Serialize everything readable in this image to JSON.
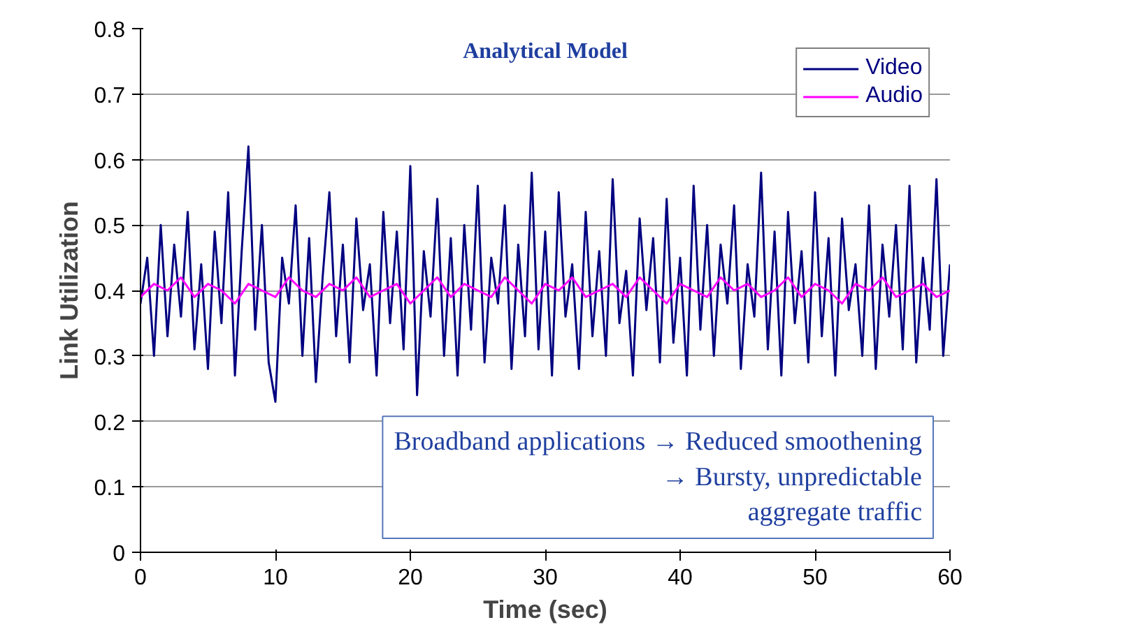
{
  "chart_data": {
    "type": "line",
    "title": "Analytical Model",
    "xlabel": "Time (sec)",
    "ylabel": "Link Utilization",
    "xlim": [
      0,
      60
    ],
    "xticks": [
      0,
      10,
      20,
      30,
      40,
      50,
      60
    ],
    "ylim": [
      0,
      0.8
    ],
    "yticks": [
      0,
      0.1,
      0.2,
      0.3,
      0.4,
      0.5,
      0.6,
      0.7,
      0.8
    ],
    "grid": "y",
    "legend": "top right",
    "marker": "none",
    "line_style": "solid",
    "annotations": [
      "Broadband applications → Reduced smoothening\n→ Bursty, unpredictable\naggregate traffic"
    ],
    "series": [
      {
        "name": "Video",
        "color": "#000080",
        "x": [
          0,
          0.5,
          1,
          1.5,
          2,
          2.5,
          3,
          3.5,
          4,
          4.5,
          5,
          5.5,
          6,
          6.5,
          7,
          7.5,
          8,
          8.5,
          9,
          9.5,
          10,
          10.5,
          11,
          11.5,
          12,
          12.5,
          13,
          13.5,
          14,
          14.5,
          15,
          15.5,
          16,
          16.5,
          17,
          17.5,
          18,
          18.5,
          19,
          19.5,
          20,
          20.5,
          21,
          21.5,
          22,
          22.5,
          23,
          23.5,
          24,
          24.5,
          25,
          25.5,
          26,
          26.5,
          27,
          27.5,
          28,
          28.5,
          29,
          29.5,
          30,
          30.5,
          31,
          31.5,
          32,
          32.5,
          33,
          33.5,
          34,
          34.5,
          35,
          35.5,
          36,
          36.5,
          37,
          37.5,
          38,
          38.5,
          39,
          39.5,
          40,
          40.5,
          41,
          41.5,
          42,
          42.5,
          43,
          43.5,
          44,
          44.5,
          45,
          45.5,
          46,
          46.5,
          47,
          47.5,
          48,
          48.5,
          49,
          49.5,
          50,
          50.5,
          51,
          51.5,
          52,
          52.5,
          53,
          53.5,
          54,
          54.5,
          55,
          55.5,
          56,
          56.5,
          57,
          57.5,
          58,
          58.5,
          59,
          59.5,
          60
        ],
        "values": [
          0.38,
          0.45,
          0.3,
          0.5,
          0.33,
          0.47,
          0.36,
          0.52,
          0.31,
          0.44,
          0.28,
          0.49,
          0.35,
          0.55,
          0.27,
          0.46,
          0.62,
          0.34,
          0.5,
          0.29,
          0.23,
          0.45,
          0.38,
          0.53,
          0.3,
          0.48,
          0.26,
          0.42,
          0.55,
          0.33,
          0.47,
          0.29,
          0.51,
          0.37,
          0.44,
          0.27,
          0.52,
          0.35,
          0.49,
          0.31,
          0.59,
          0.24,
          0.46,
          0.36,
          0.54,
          0.3,
          0.48,
          0.27,
          0.5,
          0.34,
          0.56,
          0.29,
          0.45,
          0.38,
          0.53,
          0.28,
          0.47,
          0.33,
          0.58,
          0.31,
          0.49,
          0.27,
          0.55,
          0.36,
          0.44,
          0.28,
          0.52,
          0.33,
          0.46,
          0.3,
          0.57,
          0.35,
          0.43,
          0.27,
          0.51,
          0.37,
          0.48,
          0.29,
          0.54,
          0.32,
          0.45,
          0.27,
          0.56,
          0.34,
          0.5,
          0.3,
          0.47,
          0.38,
          0.53,
          0.28,
          0.44,
          0.36,
          0.58,
          0.31,
          0.49,
          0.27,
          0.52,
          0.35,
          0.46,
          0.29,
          0.55,
          0.33,
          0.48,
          0.27,
          0.51,
          0.37,
          0.44,
          0.3,
          0.53,
          0.28,
          0.47,
          0.36,
          0.5,
          0.31,
          0.56,
          0.29,
          0.45,
          0.34,
          0.57,
          0.3,
          0.44
        ]
      },
      {
        "name": "Audio",
        "color": "#ff00ff",
        "x": [
          0,
          1,
          2,
          3,
          4,
          5,
          6,
          7,
          8,
          9,
          10,
          11,
          12,
          13,
          14,
          15,
          16,
          17,
          18,
          19,
          20,
          21,
          22,
          23,
          24,
          25,
          26,
          27,
          28,
          29,
          30,
          31,
          32,
          33,
          34,
          35,
          36,
          37,
          38,
          39,
          40,
          41,
          42,
          43,
          44,
          45,
          46,
          47,
          48,
          49,
          50,
          51,
          52,
          53,
          54,
          55,
          56,
          57,
          58,
          59,
          60
        ],
        "values": [
          0.39,
          0.41,
          0.4,
          0.42,
          0.39,
          0.41,
          0.4,
          0.38,
          0.41,
          0.4,
          0.39,
          0.42,
          0.4,
          0.39,
          0.41,
          0.4,
          0.42,
          0.39,
          0.4,
          0.41,
          0.38,
          0.4,
          0.42,
          0.39,
          0.41,
          0.4,
          0.39,
          0.42,
          0.4,
          0.38,
          0.41,
          0.4,
          0.42,
          0.39,
          0.4,
          0.41,
          0.39,
          0.42,
          0.4,
          0.38,
          0.41,
          0.4,
          0.39,
          0.42,
          0.4,
          0.41,
          0.39,
          0.4,
          0.42,
          0.39,
          0.41,
          0.4,
          0.38,
          0.41,
          0.4,
          0.42,
          0.39,
          0.4,
          0.41,
          0.39,
          0.4
        ]
      }
    ]
  }
}
